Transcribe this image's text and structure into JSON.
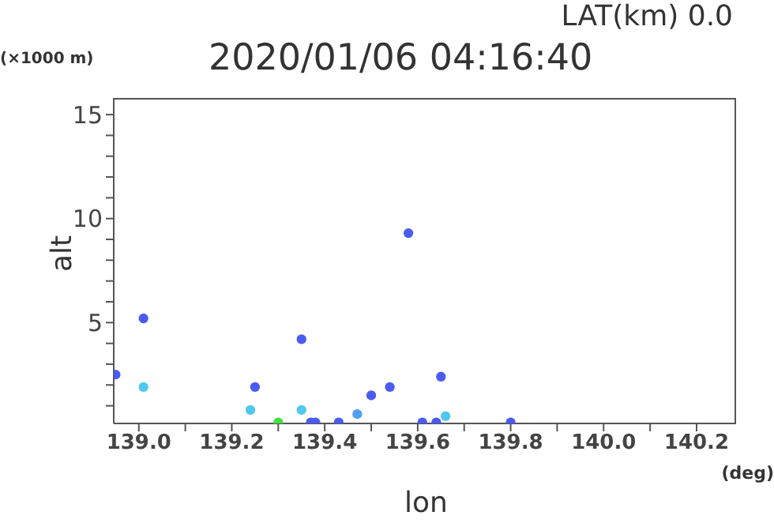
{
  "chart_data": {
    "type": "scatter",
    "title": "2020/01/06 04:16:40",
    "subtitle": "LAT(km) 0.0",
    "xlabel": "lon",
    "ylabel": "alt",
    "annotations": [
      "(×1000 m)",
      "(deg)"
    ],
    "x": [
      138.95,
      139.01,
      139.01,
      139.35,
      139.25,
      139.24,
      139.3,
      139.35,
      139.38,
      139.58,
      139.5,
      139.47,
      139.54,
      139.65,
      139.66,
      139.64,
      139.61,
      139.43,
      139.37,
      139.8
    ],
    "values": [
      2.5,
      5.2,
      1.9,
      4.2,
      1.9,
      0.8,
      0.2,
      0.8,
      0.2,
      9.3,
      1.5,
      0.6,
      1.9,
      2.4,
      0.5,
      0.2,
      0.2,
      0.2,
      0.2,
      0.2
    ],
    "colors": [
      "#4a5cf0",
      "#4a5cf0",
      "#50c8f0",
      "#4a5cf0",
      "#4a5cf0",
      "#50c8f0",
      "#40e040",
      "#50c8f0",
      "#4a5cf0",
      "#4a5cf0",
      "#4a5cf0",
      "#50a0f0",
      "#4a5cf0",
      "#4a5cf0",
      "#50c8f0",
      "#4a5cf0",
      "#4a5cf0",
      "#4a5cf0",
      "#4a5cf0",
      "#4a5cf0"
    ],
    "xlim": [
      138.946,
      140.285
    ],
    "xticks": [
      {
        "value": 139,
        "label": "139.0"
      },
      {
        "value": 139.1,
        "label": null
      },
      {
        "value": 139.2,
        "label": "139.2"
      },
      {
        "value": 139.3,
        "label": null
      },
      {
        "value": 139.4,
        "label": "139.4"
      },
      {
        "value": 139.5,
        "label": null
      },
      {
        "value": 139.6,
        "label": "139.6"
      },
      {
        "value": 139.7,
        "label": null
      },
      {
        "value": 139.8,
        "label": "139.8"
      },
      {
        "value": 139.9,
        "label": null
      },
      {
        "value": 140,
        "label": "140.0"
      },
      {
        "value": 140.1,
        "label": null
      },
      {
        "value": 140.2,
        "label": "140.2"
      }
    ],
    "ylim": [
      0.15,
      15.8
    ],
    "yticks": [
      {
        "value": 1,
        "label": null
      },
      {
        "value": 2,
        "label": null
      },
      {
        "value": 3,
        "label": null
      },
      {
        "value": 4,
        "label": null
      },
      5,
      {
        "value": 6,
        "label": null
      },
      {
        "value": 7,
        "label": null
      },
      {
        "value": 8,
        "label": null
      },
      {
        "value": 9,
        "label": null
      },
      10,
      {
        "value": 11,
        "label": null
      },
      {
        "value": 12,
        "label": null
      },
      {
        "value": 13,
        "label": null
      },
      {
        "value": 14,
        "label": null
      },
      15
    ]
  }
}
